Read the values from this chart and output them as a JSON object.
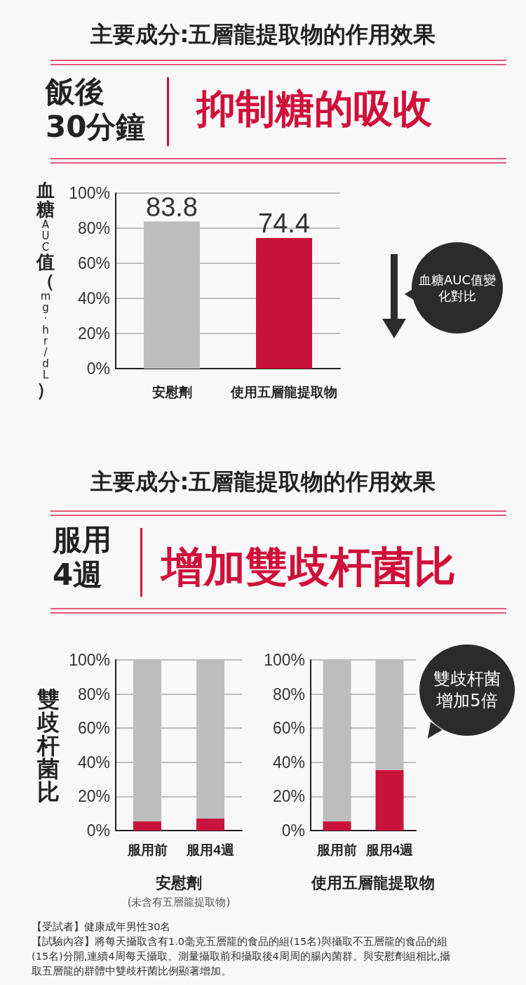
{
  "chart_data": [
    {
      "type": "bar",
      "title": "主要成分:五層龍提取物的作用效果",
      "subtitle": "抑制糖的吸收",
      "ylabel": "血糖AUC值（mg·hr/dL）",
      "categories": [
        "安慰劑",
        "使用五層龍提取物"
      ],
      "values": [
        83.8,
        74.4
      ],
      "colors": [
        "#bdbdbd",
        "#c8143c"
      ],
      "data_labels": true,
      "ylim": [
        0,
        100
      ],
      "yticks": [
        {
          "value": 0,
          "label": "0%"
        },
        {
          "value": 20,
          "label": "20%"
        },
        {
          "value": 40,
          "label": "40%"
        },
        {
          "value": 60,
          "label": "60%"
        },
        {
          "value": 80,
          "label": "80%"
        },
        {
          "value": 100,
          "label": "100%"
        }
      ],
      "grid": "y",
      "annotations": [
        "飯後 30分鐘",
        "血糖AUC值變化對比"
      ]
    },
    {
      "type": "bar",
      "stacked": true,
      "title": "主要成分:五層龍提取物的作用效果",
      "subtitle": "增加雙歧杆菌比",
      "ylabel": "雙歧杆菌比",
      "xlabel": "安慰劑",
      "categories": [
        "服用前",
        "服用4週"
      ],
      "series": [
        {
          "color": "#c8143c",
          "values": [
            5.5,
            7
          ]
        },
        {
          "color": "#bdbdbd",
          "values": [
            94.5,
            93
          ]
        }
      ],
      "ylim": [
        0,
        100
      ],
      "yticks": [
        {
          "value": 0,
          "label": "0%"
        },
        {
          "value": 20,
          "label": "20%"
        },
        {
          "value": 40,
          "label": "40%"
        },
        {
          "value": 60,
          "label": "60%"
        },
        {
          "value": 80,
          "label": "80%"
        },
        {
          "value": 100,
          "label": "100%"
        }
      ],
      "grid": "y",
      "annotations": [
        "服用 4週",
        "(未含有五層龍提取物)"
      ]
    },
    {
      "type": "bar",
      "stacked": true,
      "xlabel": "使用五層龍提取物",
      "categories": [
        "服用前",
        "服用4週"
      ],
      "series": [
        {
          "color": "#c8143c",
          "values": [
            5.5,
            35.5
          ]
        },
        {
          "color": "#bdbdbd",
          "values": [
            94.5,
            64.5
          ]
        }
      ],
      "ylim": [
        0,
        100
      ],
      "yticks": [
        {
          "value": 0,
          "label": "0%"
        },
        {
          "value": 20,
          "label": "20%"
        },
        {
          "value": 40,
          "label": "40%"
        },
        {
          "value": 60,
          "label": "60%"
        },
        {
          "value": 80,
          "label": "80%"
        },
        {
          "value": 100,
          "label": "100%"
        }
      ],
      "grid": "y",
      "annotations": [
        "雙歧杆菌增加5倍",
        "【受試者】健康成年男性30名",
        "【試驗內容】將每天攝取含有1.0毫克五層龍的食品的組(15名)與攝取不五層龍的食品的組(15名)分開,連續4周每天攝取。測量攝取前和攝取後4周周的腸內菌群。與安慰劑組相比,攝取五層龍的群體中雙歧杆菌比例顯著增加。"
      ]
    }
  ]
}
